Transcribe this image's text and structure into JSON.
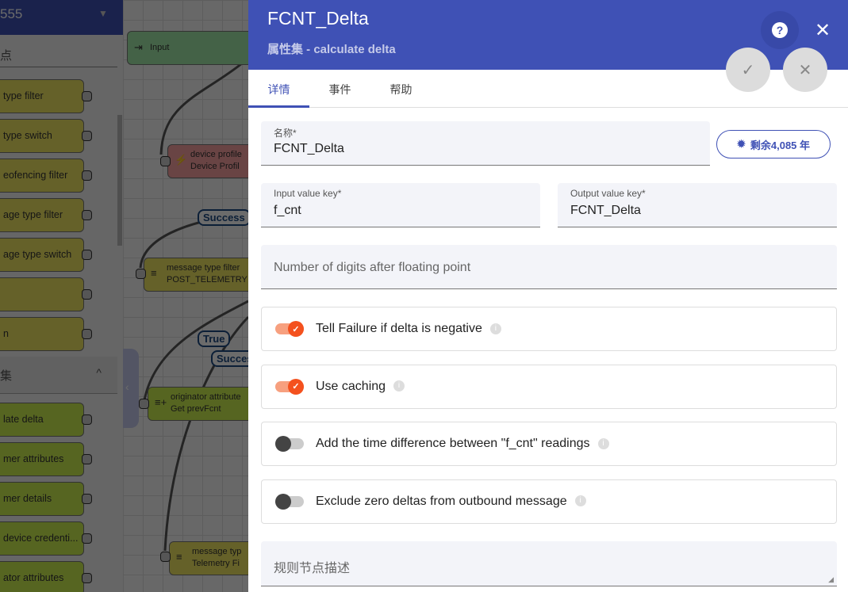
{
  "sidebar": {
    "header": "555",
    "search": "点",
    "section": "集",
    "filter_nodes": [
      "type filter",
      "type switch",
      "eofencing filter",
      "age type filter",
      "age type switch",
      "",
      "n"
    ],
    "enrich_nodes": [
      "late delta",
      "mer attributes",
      "mer details",
      "device credenti...",
      "ator attributes"
    ]
  },
  "canvas": {
    "nodes": [
      {
        "type": "Input",
        "name": ""
      },
      {
        "type": "device profile",
        "name": "Device Profil"
      },
      {
        "type": "message type filter",
        "name": "POST_TELEMETRY"
      },
      {
        "type": "originator attribute",
        "name": "Get prevFcnt"
      },
      {
        "type": "message typ",
        "name": "Telemetry Fi"
      }
    ],
    "labels": [
      "Success",
      "True",
      "Success"
    ]
  },
  "panel": {
    "title": "FCNT_Delta",
    "subtitle": "属性集 - calculate delta",
    "tabs": [
      "详情",
      "事件",
      "帮助"
    ],
    "name_label": "名称*",
    "name_value": "FCNT_Delta",
    "badge": "剩余4,085 年",
    "input_key_label": "Input value key*",
    "input_key_value": "f_cnt",
    "output_key_label": "Output value key*",
    "output_key_value": "FCNT_Delta",
    "digits_placeholder": "Number of digits after floating point",
    "toggles": [
      {
        "label": "Tell Failure if delta is negative",
        "on": true
      },
      {
        "label": "Use caching",
        "on": true
      },
      {
        "label": "Add the time difference between \"f_cnt\" readings",
        "on": false
      },
      {
        "label": "Exclude zero deltas from outbound message",
        "on": false
      }
    ],
    "description_placeholder": "规则节点描述"
  },
  "colors": {
    "primary": "#3f51b5",
    "accent": "#f4511e"
  }
}
